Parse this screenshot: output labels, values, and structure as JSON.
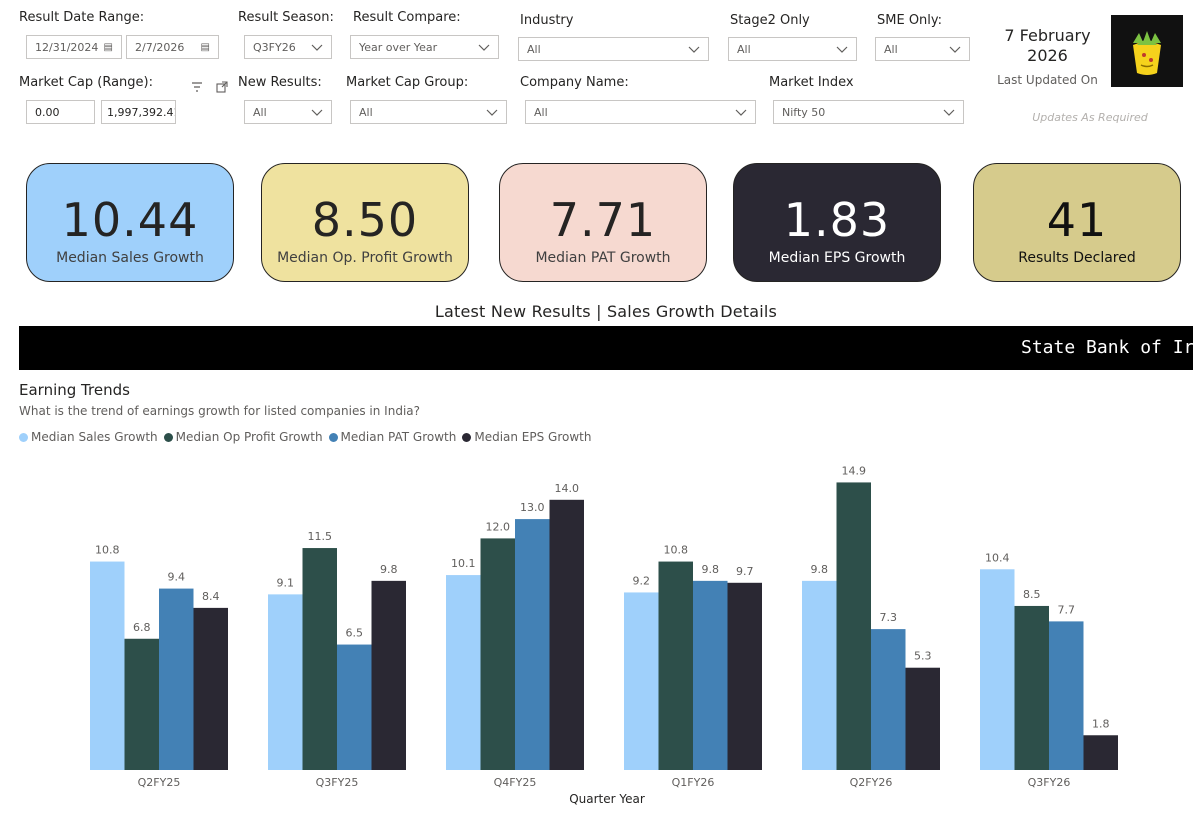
{
  "filters": {
    "result_date_range": {
      "label": "Result Date Range:",
      "start": "12/31/2024",
      "end": "2/7/2026"
    },
    "result_season": {
      "label": "Result Season:",
      "value": "Q3FY26"
    },
    "result_compare": {
      "label": "Result Compare:",
      "value": "Year over Year"
    },
    "industry": {
      "label": "Industry",
      "value": "All"
    },
    "stage2_only": {
      "label": "Stage2 Only",
      "value": "All"
    },
    "sme_only": {
      "label": "SME Only:",
      "value": "All"
    },
    "market_cap_range": {
      "label": "Market Cap (Range):",
      "min": "0.00",
      "max": "1,997,392.41"
    },
    "new_results": {
      "label": "New Results:",
      "value": "All"
    },
    "market_cap_group": {
      "label": "Market Cap Group:",
      "value": "All"
    },
    "company_name": {
      "label": "Company Name:",
      "value": "All"
    },
    "market_index": {
      "label": "Market Index",
      "value": "Nifty 50"
    }
  },
  "header": {
    "date_line1": "7 February",
    "date_line2": "2026",
    "last_updated_label": "Last Updated On",
    "updates_note": "Updates As Required"
  },
  "kpis": [
    {
      "value": "10.44",
      "label": "Median Sales Growth",
      "bg": "#9fd0fb",
      "fg": "#252423",
      "label_fg": "#404040"
    },
    {
      "value": "8.50",
      "label": "Median Op. Profit Growth",
      "bg": "#efe29f",
      "fg": "#252423",
      "label_fg": "#404040"
    },
    {
      "value": "7.71",
      "label": "Median PAT Growth",
      "bg": "#f6d9d0",
      "fg": "#252423",
      "label_fg": "#404040"
    },
    {
      "value": "1.83",
      "label": "Median EPS Growth",
      "bg": "#2a2833",
      "fg": "#ffffff",
      "label_fg": "#ffffff"
    },
    {
      "value": "41",
      "label": "Results Declared",
      "bg": "#d6cb8c",
      "fg": "#111111",
      "label_fg": "#111111"
    }
  ],
  "section_title": "Latest New Results | Sales Growth Details",
  "ticker_text": "State Bank of Ir",
  "chart": {
    "title": "Earning Trends",
    "subtitle": "What is the trend of earnings growth for listed companies in India?"
  },
  "chart_data": {
    "type": "bar",
    "xlabel": "Quarter Year",
    "ylabel": "",
    "ylim": [
      0,
      16
    ],
    "categories": [
      "Q2FY25",
      "Q3FY25",
      "Q4FY25",
      "Q1FY26",
      "Q2FY26",
      "Q3FY26"
    ],
    "series": [
      {
        "name": "Median Sales Growth",
        "color": "#9fd0fb",
        "values": [
          10.8,
          9.1,
          10.1,
          9.2,
          9.8,
          10.4
        ]
      },
      {
        "name": "Median Op Profit Growth",
        "color": "#2d4f4a",
        "values": [
          6.8,
          11.5,
          12.0,
          10.8,
          14.9,
          8.5
        ]
      },
      {
        "name": "Median PAT Growth",
        "color": "#4381b5",
        "values": [
          9.4,
          6.5,
          13.0,
          9.8,
          7.3,
          7.7
        ]
      },
      {
        "name": "Median EPS Growth",
        "color": "#2a2833",
        "values": [
          8.4,
          9.8,
          14.0,
          9.7,
          5.3,
          1.8
        ]
      }
    ]
  }
}
